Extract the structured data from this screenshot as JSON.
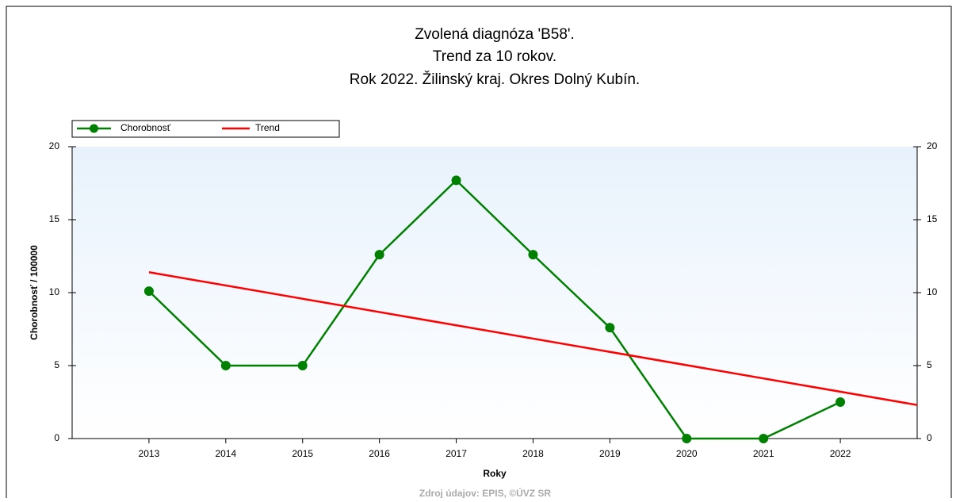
{
  "chart_data": {
    "type": "line",
    "title": [
      "Zvolená diagnóza 'B58'.",
      "Trend za 10 rokov.",
      "Rok 2022. Žilinský kraj. Okres Dolný Kubín."
    ],
    "x_label": "Roky",
    "y_label": "Chorobnosť / 100000",
    "source": "Zdroj údajov: EPIS, ©ÚVZ SR",
    "x": [
      2013,
      2014,
      2015,
      2016,
      2017,
      2018,
      2019,
      2020,
      2021,
      2022
    ],
    "series": [
      {
        "name": "Chorobnosť",
        "color": "#008000",
        "values": [
          10.1,
          5.0,
          5.0,
          12.6,
          17.7,
          12.6,
          7.6,
          0,
          0,
          2.5
        ]
      },
      {
        "name": "Trend",
        "color": "#ff0000",
        "x": [
          2013,
          2023
        ],
        "values": [
          11.4,
          2.3
        ]
      }
    ],
    "xlim": [
      2012,
      2023
    ],
    "xticks": [
      2013,
      2014,
      2015,
      2016,
      2017,
      2018,
      2019,
      2020,
      2021,
      2022
    ],
    "ylim": [
      0,
      20
    ],
    "yticks": [
      0,
      5,
      10,
      15,
      20
    ],
    "y2lim": [
      0,
      20
    ],
    "y2ticks": [
      0,
      5,
      10,
      15,
      20
    ],
    "legend": "top-left",
    "grid": false
  }
}
